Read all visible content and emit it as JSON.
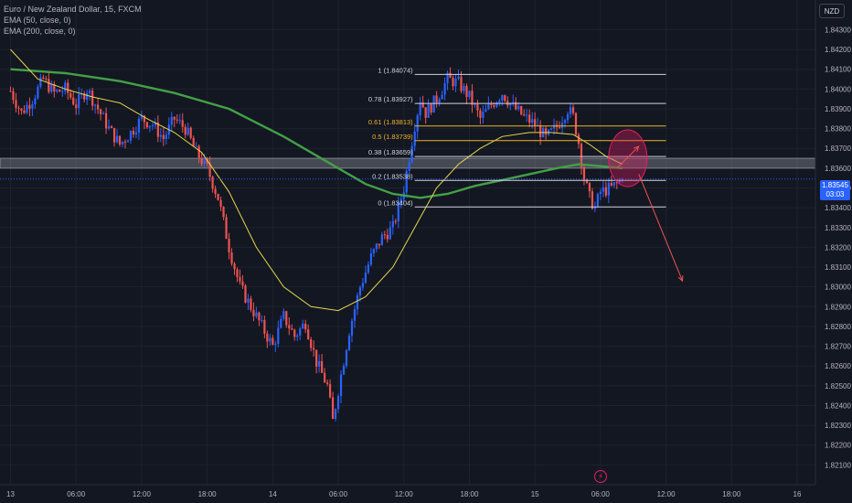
{
  "legend": {
    "symbol": "Euro / New Zealand Dollar, 15, FXCM",
    "ema50": "EMA (50, close, 0)",
    "ema200": "EMA (200, close, 0)"
  },
  "currency": "NZD",
  "current_price": {
    "price": "1.83545",
    "countdown": "03:03"
  },
  "icons": {
    "event": "lightning-icon"
  },
  "colors": {
    "background": "#131722",
    "up": "#2962ff",
    "down": "#ef5350",
    "ema50": "#e8d74a",
    "ema200": "#43a047",
    "fib_white": "#d1d4dc",
    "fib_orange": "#f0b429",
    "zone": "#b2b5be",
    "ellipse": "#e91e63",
    "arrow": "#ef5350"
  },
  "chart_data": {
    "type": "candlestick",
    "y_axis": {
      "range": [
        1.82,
        1.8445
      ],
      "ticks": [
        "1.84300",
        "1.84200",
        "1.84100",
        "1.84000",
        "1.83900",
        "1.83800",
        "1.83700",
        "1.83600",
        "1.83500",
        "1.83400",
        "1.83300",
        "1.83200",
        "1.83100",
        "1.83000",
        "1.82900",
        "1.82800",
        "1.82700",
        "1.82600",
        "1.82500",
        "1.82400",
        "1.82300",
        "1.82200",
        "1.82100"
      ]
    },
    "x_axis": {
      "ticks": [
        "13",
        "06:00",
        "12:00",
        "18:00",
        "14",
        "06:00",
        "12:00",
        "18:00",
        "15",
        "06:00",
        "12:00",
        "18:00",
        "16"
      ],
      "tick_index": [
        0,
        24,
        48,
        72,
        96,
        120,
        144,
        168,
        192,
        216,
        240,
        264,
        288
      ]
    },
    "price_path": [
      [
        0,
        1.8399
      ],
      [
        4,
        1.8388
      ],
      [
        8,
        1.8395
      ],
      [
        12,
        1.8405
      ],
      [
        16,
        1.8398
      ],
      [
        20,
        1.84
      ],
      [
        24,
        1.8392
      ],
      [
        28,
        1.84
      ],
      [
        32,
        1.839
      ],
      [
        36,
        1.838
      ],
      [
        40,
        1.8372
      ],
      [
        44,
        1.8378
      ],
      [
        48,
        1.8385
      ],
      [
        52,
        1.8382
      ],
      [
        56,
        1.8375
      ],
      [
        60,
        1.8385
      ],
      [
        64,
        1.838
      ],
      [
        68,
        1.8368
      ],
      [
        72,
        1.836
      ],
      [
        76,
        1.8345
      ],
      [
        80,
        1.832
      ],
      [
        84,
        1.83
      ],
      [
        88,
        1.829
      ],
      [
        92,
        1.828
      ],
      [
        96,
        1.827
      ],
      [
        100,
        1.8285
      ],
      [
        104,
        1.8275
      ],
      [
        108,
        1.8282
      ],
      [
        112,
        1.8262
      ],
      [
        116,
        1.825
      ],
      [
        118,
        1.8232
      ],
      [
        120,
        1.8248
      ],
      [
        124,
        1.8278
      ],
      [
        128,
        1.83
      ],
      [
        132,
        1.8315
      ],
      [
        136,
        1.8325
      ],
      [
        140,
        1.833
      ],
      [
        144,
        1.835
      ],
      [
        148,
        1.8382
      ],
      [
        150,
        1.8395
      ],
      [
        152,
        1.8388
      ],
      [
        156,
        1.8395
      ],
      [
        160,
        1.8405
      ],
      [
        164,
        1.8403
      ],
      [
        168,
        1.8396
      ],
      [
        172,
        1.8385
      ],
      [
        176,
        1.8392
      ],
      [
        180,
        1.8398
      ],
      [
        184,
        1.8391
      ],
      [
        188,
        1.8386
      ],
      [
        192,
        1.8382
      ],
      [
        196,
        1.8375
      ],
      [
        200,
        1.8381
      ],
      [
        204,
        1.839
      ],
      [
        206,
        1.8386
      ],
      [
        208,
        1.8373
      ],
      [
        210,
        1.8355
      ],
      [
        212,
        1.8345
      ],
      [
        214,
        1.834
      ],
      [
        216,
        1.8348
      ],
      [
        220,
        1.835
      ],
      [
        224,
        1.83545
      ]
    ],
    "ema50": [
      [
        0,
        1.842
      ],
      [
        10,
        1.8405
      ],
      [
        20,
        1.84
      ],
      [
        30,
        1.8396
      ],
      [
        40,
        1.8393
      ],
      [
        50,
        1.8385
      ],
      [
        60,
        1.8378
      ],
      [
        70,
        1.8368
      ],
      [
        80,
        1.8348
      ],
      [
        90,
        1.832
      ],
      [
        100,
        1.83
      ],
      [
        110,
        1.829
      ],
      [
        120,
        1.8288
      ],
      [
        130,
        1.8295
      ],
      [
        140,
        1.831
      ],
      [
        148,
        1.833
      ],
      [
        156,
        1.835
      ],
      [
        164,
        1.8362
      ],
      [
        172,
        1.837
      ],
      [
        180,
        1.8376
      ],
      [
        190,
        1.8378
      ],
      [
        198,
        1.8378
      ],
      [
        206,
        1.8377
      ],
      [
        212,
        1.8372
      ],
      [
        218,
        1.8366
      ],
      [
        224,
        1.8362
      ]
    ],
    "ema200": [
      [
        0,
        1.841
      ],
      [
        20,
        1.8408
      ],
      [
        40,
        1.8404
      ],
      [
        60,
        1.8398
      ],
      [
        80,
        1.839
      ],
      [
        100,
        1.8376
      ],
      [
        120,
        1.836
      ],
      [
        130,
        1.8352
      ],
      [
        140,
        1.8347
      ],
      [
        150,
        1.8345
      ],
      [
        160,
        1.8347
      ],
      [
        170,
        1.8351
      ],
      [
        180,
        1.8354
      ],
      [
        190,
        1.8357
      ],
      [
        200,
        1.836
      ],
      [
        208,
        1.8362
      ],
      [
        216,
        1.8361
      ],
      [
        224,
        1.836
      ]
    ],
    "fibonacci": [
      {
        "label": "1 (1.84074)",
        "value": 1.84074,
        "color": "white"
      },
      {
        "label": "0.78 (1.83927)",
        "value": 1.83927,
        "color": "white"
      },
      {
        "label": "0.61 (1.83813)",
        "value": 1.83813,
        "color": "orange"
      },
      {
        "label": "0.5 (1.83739)",
        "value": 1.83739,
        "color": "orange"
      },
      {
        "label": "0.38 (1.83659)",
        "value": 1.83659,
        "color": "white"
      },
      {
        "label": "0.2 (1.83538)",
        "value": 1.83538,
        "color": "white"
      },
      {
        "label": "0 (1.83404)",
        "value": 1.83404,
        "color": "white"
      }
    ],
    "fib_x_range": [
      148,
      240
    ],
    "zone": {
      "from": 1.836,
      "to": 1.8365
    },
    "ellipse": {
      "x": 226,
      "y": 1.8365
    },
    "arrows": [
      {
        "from": [
          222,
          1.836
        ],
        "to": [
          230,
          1.8371
        ]
      },
      {
        "from": [
          230,
          1.8357
        ],
        "to": [
          246,
          1.8303
        ]
      }
    ]
  }
}
